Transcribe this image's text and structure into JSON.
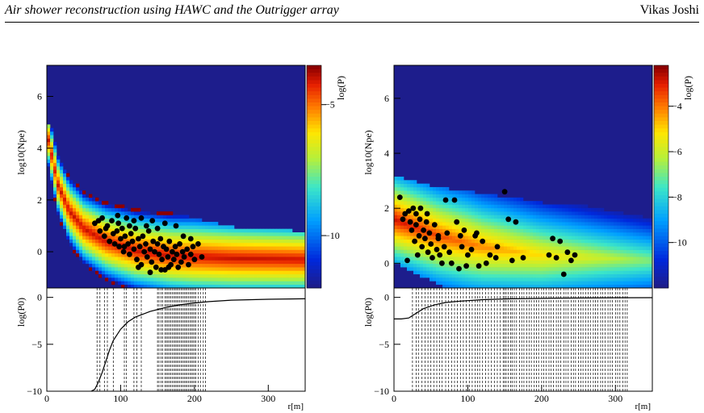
{
  "header": {
    "title": "Air shower reconstruction using HAWC and the Outrigger array",
    "author": "Vikas Joshi"
  },
  "colors": {
    "background_blue": "#1d1d8c",
    "marker": "#000000",
    "line": "#000000"
  },
  "chart_data": [
    {
      "panel": "left-top",
      "type": "heatmap",
      "ylabel": "log10(Npe)",
      "zlabel": "log(P)",
      "xlim": [
        0,
        350
      ],
      "ylim": [
        -1.4,
        7.2
      ],
      "yticks": [
        0,
        2,
        4,
        6
      ],
      "zlim": [
        -12,
        -3.5
      ],
      "zticks": [
        -5,
        -10
      ],
      "band": {
        "ridge": [
          [
            0,
            4.6
          ],
          [
            15,
            2.6
          ],
          [
            30,
            1.6
          ],
          [
            50,
            0.9
          ],
          [
            80,
            0.4
          ],
          [
            120,
            0.05
          ],
          [
            170,
            -0.15
          ],
          [
            250,
            -0.25
          ],
          [
            350,
            -0.3
          ]
        ],
        "width": [
          [
            0,
            1.0
          ],
          [
            40,
            1.3
          ],
          [
            100,
            1.5
          ],
          [
            200,
            1.6
          ],
          [
            350,
            1.5
          ]
        ],
        "upper_cut": [
          [
            0,
            5.0
          ],
          [
            60,
            2.4
          ],
          [
            100,
            2.0
          ],
          [
            150,
            1.6
          ],
          [
            200,
            1.3
          ],
          [
            260,
            0.9
          ],
          [
            350,
            0.8
          ]
        ]
      },
      "points": [
        [
          65,
          1.1
        ],
        [
          70,
          1.2
        ],
        [
          72,
          0.8
        ],
        [
          75,
          1.3
        ],
        [
          78,
          0.6
        ],
        [
          80,
          0.9
        ],
        [
          82,
          1.0
        ],
        [
          85,
          0.4
        ],
        [
          88,
          1.2
        ],
        [
          90,
          0.7
        ],
        [
          92,
          0.3
        ],
        [
          95,
          0.8
        ],
        [
          97,
          1.1
        ],
        [
          98,
          0.2
        ],
        [
          100,
          0.5
        ],
        [
          102,
          0.9
        ],
        [
          104,
          0.0
        ],
        [
          106,
          0.6
        ],
        [
          108,
          1.3
        ],
        [
          110,
          0.3
        ],
        [
          112,
          -0.1
        ],
        [
          114,
          0.7
        ],
        [
          116,
          0.4
        ],
        [
          118,
          0.1
        ],
        [
          120,
          0.9
        ],
        [
          122,
          -0.3
        ],
        [
          124,
          0.5
        ],
        [
          126,
          0.2
        ],
        [
          128,
          -0.5
        ],
        [
          130,
          0.6
        ],
        [
          132,
          0.0
        ],
        [
          134,
          0.3
        ],
        [
          136,
          -0.2
        ],
        [
          138,
          0.8
        ],
        [
          140,
          0.1
        ],
        [
          142,
          -0.4
        ],
        [
          144,
          0.4
        ],
        [
          146,
          0.0
        ],
        [
          148,
          -0.6
        ],
        [
          150,
          0.3
        ],
        [
          152,
          -0.1
        ],
        [
          154,
          0.5
        ],
        [
          156,
          -0.3
        ],
        [
          158,
          0.2
        ],
        [
          160,
          -0.7
        ],
        [
          162,
          0.1
        ],
        [
          164,
          -0.2
        ],
        [
          166,
          0.4
        ],
        [
          168,
          -0.5
        ],
        [
          170,
          0.0
        ],
        [
          172,
          -0.3
        ],
        [
          174,
          0.2
        ],
        [
          176,
          -0.1
        ],
        [
          178,
          -0.6
        ],
        [
          180,
          0.3
        ],
        [
          182,
          -0.4
        ],
        [
          184,
          0.0
        ],
        [
          186,
          -0.2
        ],
        [
          190,
          0.1
        ],
        [
          192,
          -0.5
        ],
        [
          195,
          -0.1
        ],
        [
          198,
          0.2
        ],
        [
          200,
          -0.3
        ],
        [
          205,
          0.3
        ],
        [
          210,
          -0.2
        ],
        [
          96,
          1.4
        ],
        [
          118,
          1.2
        ],
        [
          128,
          1.3
        ],
        [
          143,
          1.2
        ],
        [
          160,
          1.1
        ],
        [
          175,
          1.0
        ],
        [
          185,
          0.6
        ],
        [
          195,
          0.5
        ],
        [
          150,
          0.9
        ],
        [
          135,
          1.0
        ],
        [
          112,
          1.0
        ],
        [
          105,
          0.2
        ],
        [
          124,
          -0.6
        ],
        [
          140,
          -0.8
        ],
        [
          155,
          -0.7
        ],
        [
          165,
          -0.6
        ]
      ]
    },
    {
      "panel": "right-top",
      "type": "heatmap",
      "ylabel": "log10(Npe)",
      "zlabel": "log(P)",
      "xlim": [
        0,
        350
      ],
      "ylim": [
        -0.9,
        7.2
      ],
      "yticks": [
        0,
        2,
        4,
        6
      ],
      "zlim": [
        -12,
        -2.2
      ],
      "zticks": [
        -4,
        -6,
        -8,
        -10
      ],
      "band": {
        "ridge": [
          [
            0,
            1.6
          ],
          [
            20,
            1.4
          ],
          [
            60,
            1.0
          ],
          [
            120,
            0.6
          ],
          [
            200,
            0.3
          ],
          [
            350,
            0.1
          ]
        ],
        "width": [
          [
            0,
            1.5
          ],
          [
            100,
            1.8
          ],
          [
            200,
            1.9
          ],
          [
            350,
            1.9
          ]
        ],
        "upper_cut": [
          [
            0,
            5.0
          ],
          [
            20,
            3.6
          ],
          [
            60,
            3.0
          ],
          [
            120,
            2.6
          ],
          [
            200,
            2.2
          ],
          [
            300,
            2.1
          ],
          [
            350,
            2.1
          ]
        ]
      },
      "points": [
        [
          8,
          2.4
        ],
        [
          12,
          1.6
        ],
        [
          15,
          1.8
        ],
        [
          18,
          0.1
        ],
        [
          20,
          1.9
        ],
        [
          22,
          1.5
        ],
        [
          24,
          1.2
        ],
        [
          26,
          2.0
        ],
        [
          28,
          0.8
        ],
        [
          30,
          1.4
        ],
        [
          32,
          0.3
        ],
        [
          34,
          1.0
        ],
        [
          35,
          1.6
        ],
        [
          36,
          2.0
        ],
        [
          38,
          0.6
        ],
        [
          40,
          1.2
        ],
        [
          42,
          0.9
        ],
        [
          44,
          1.5
        ],
        [
          46,
          0.4
        ],
        [
          48,
          1.1
        ],
        [
          50,
          0.7
        ],
        [
          52,
          0.2
        ],
        [
          55,
          1.4
        ],
        [
          58,
          0.5
        ],
        [
          60,
          0.9
        ],
        [
          62,
          0.3
        ],
        [
          65,
          0.0
        ],
        [
          68,
          0.6
        ],
        [
          70,
          2.3
        ],
        [
          72,
          1.1
        ],
        [
          75,
          0.4
        ],
        [
          78,
          0.0
        ],
        [
          82,
          2.3
        ],
        [
          85,
          1.5
        ],
        [
          88,
          -0.2
        ],
        [
          90,
          1.0
        ],
        [
          92,
          0.6
        ],
        [
          95,
          1.2
        ],
        [
          98,
          -0.1
        ],
        [
          100,
          0.3
        ],
        [
          105,
          0.5
        ],
        [
          110,
          1.0
        ],
        [
          115,
          -0.1
        ],
        [
          120,
          0.8
        ],
        [
          125,
          0.0
        ],
        [
          130,
          0.3
        ],
        [
          140,
          0.6
        ],
        [
          150,
          2.6
        ],
        [
          155,
          1.6
        ],
        [
          160,
          0.1
        ],
        [
          165,
          1.5
        ],
        [
          175,
          0.2
        ],
        [
          210,
          0.3
        ],
        [
          215,
          0.9
        ],
        [
          220,
          0.2
        ],
        [
          225,
          0.8
        ],
        [
          230,
          -0.4
        ],
        [
          235,
          0.4
        ],
        [
          240,
          0.1
        ],
        [
          245,
          0.3
        ],
        [
          30,
          1.8
        ],
        [
          45,
          1.8
        ],
        [
          60,
          1.0
        ],
        [
          112,
          1.1
        ],
        [
          138,
          0.2
        ]
      ]
    },
    {
      "panel": "left-bottom",
      "type": "line",
      "ylabel": "log(P0)",
      "xlabel": "r[m]",
      "xlim": [
        0,
        350
      ],
      "ylim": [
        -10,
        1
      ],
      "xticks": [
        0,
        100,
        200,
        300
      ],
      "yticks": [
        -10,
        -5,
        0
      ],
      "curve": [
        [
          60,
          -10
        ],
        [
          65,
          -9.8
        ],
        [
          70,
          -9
        ],
        [
          75,
          -8
        ],
        [
          80,
          -6.8
        ],
        [
          85,
          -5.6
        ],
        [
          90,
          -4.6
        ],
        [
          100,
          -3.4
        ],
        [
          110,
          -2.6
        ],
        [
          120,
          -2.1
        ],
        [
          140,
          -1.5
        ],
        [
          160,
          -1.1
        ],
        [
          180,
          -0.8
        ],
        [
          200,
          -0.6
        ],
        [
          220,
          -0.45
        ],
        [
          250,
          -0.3
        ],
        [
          300,
          -0.2
        ],
        [
          350,
          -0.15
        ]
      ],
      "dashed_x": [
        68,
        72,
        78,
        82,
        90,
        105,
        108,
        118,
        122,
        128,
        150,
        152,
        155,
        157,
        160,
        162,
        164,
        166,
        168,
        170,
        172,
        174,
        176,
        178,
        180,
        182,
        184,
        186,
        188,
        190,
        192,
        194,
        196,
        198,
        200,
        202,
        205,
        208,
        212,
        215
      ]
    },
    {
      "panel": "right-bottom",
      "type": "line",
      "ylabel": "log(P0)",
      "xlabel": "r[m]",
      "xlim": [
        0,
        350
      ],
      "ylim": [
        -10,
        1
      ],
      "xticks": [
        0,
        100,
        200,
        300
      ],
      "yticks": [
        -10,
        -5,
        0
      ],
      "curve": [
        [
          0,
          -2.3
        ],
        [
          10,
          -2.3
        ],
        [
          20,
          -2.2
        ],
        [
          30,
          -1.7
        ],
        [
          40,
          -1.2
        ],
        [
          55,
          -0.8
        ],
        [
          70,
          -0.55
        ],
        [
          90,
          -0.4
        ],
        [
          120,
          -0.25
        ],
        [
          160,
          -0.15
        ],
        [
          220,
          -0.08
        ],
        [
          300,
          -0.04
        ],
        [
          350,
          -0.03
        ]
      ],
      "dashed_x": [
        25,
        30,
        33,
        38,
        42,
        46,
        50,
        54,
        58,
        62,
        65,
        70,
        74,
        78,
        82,
        86,
        90,
        94,
        98,
        102,
        106,
        110,
        113,
        116,
        120,
        124,
        128,
        132,
        136,
        140,
        144,
        148,
        150,
        152,
        155,
        158,
        160,
        163,
        166,
        170,
        173,
        176,
        180,
        183,
        186,
        190,
        193,
        196,
        200,
        203,
        206,
        210,
        213,
        216,
        220,
        223,
        226,
        230,
        233,
        236,
        240,
        243,
        246,
        250,
        253,
        256,
        260,
        263,
        266,
        270,
        273,
        276,
        280,
        283,
        286,
        290,
        293,
        296,
        300,
        303,
        306,
        310,
        313,
        316
      ]
    }
  ]
}
